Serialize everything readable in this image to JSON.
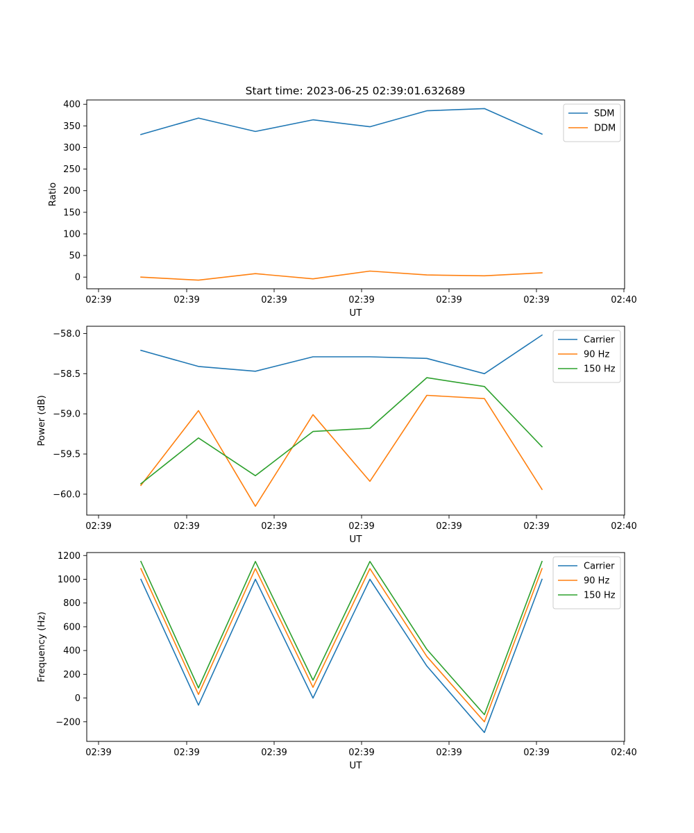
{
  "figure": {
    "title": "Start time: 2023-06-25 02:39:01.632689"
  },
  "colors": {
    "blue": "#1f77b4",
    "orange": "#ff7f0e",
    "green": "#2ca02c"
  },
  "chart_data": [
    {
      "type": "line",
      "title": "Start time: 2023-06-25 02:39:01.632689",
      "xlabel": "UT",
      "ylabel": "Ratio",
      "x_tick_labels": [
        "02:39",
        "02:39",
        "02:39",
        "02:39",
        "02:39",
        "02:39",
        "02:40"
      ],
      "y_ticks": [
        0,
        50,
        100,
        150,
        200,
        250,
        300,
        350,
        400
      ],
      "ylim": [
        -27,
        410
      ],
      "grid": false,
      "legend_position": "upper right",
      "series": [
        {
          "name": "SDM",
          "color": "#1f77b4",
          "values": [
            330,
            368,
            337,
            364,
            348,
            385,
            390,
            331
          ]
        },
        {
          "name": "DDM",
          "color": "#ff7f0e",
          "values": [
            0,
            -7,
            8,
            -4,
            14,
            5,
            3,
            10
          ]
        }
      ]
    },
    {
      "type": "line",
      "title": "",
      "xlabel": "UT",
      "ylabel": "Power (dB)",
      "x_tick_labels": [
        "02:39",
        "02:39",
        "02:39",
        "02:39",
        "02:39",
        "02:39",
        "02:40"
      ],
      "y_ticks": [
        -60.0,
        -59.5,
        -59.0,
        -58.5,
        -58.0
      ],
      "y_tick_labels": [
        "−60.0",
        "−59.5",
        "−59.0",
        "−58.5",
        "−58.0"
      ],
      "ylim": [
        -60.26,
        -57.91
      ],
      "grid": false,
      "legend_position": "upper right",
      "series": [
        {
          "name": "Carrier",
          "color": "#1f77b4",
          "values": [
            -58.21,
            -58.41,
            -58.47,
            -58.29,
            -58.29,
            -58.31,
            -58.5,
            -58.02
          ]
        },
        {
          "name": "90 Hz",
          "color": "#ff7f0e",
          "values": [
            -59.89,
            -58.96,
            -60.15,
            -59.01,
            -59.84,
            -58.77,
            -58.81,
            -59.94
          ]
        },
        {
          "name": "150 Hz",
          "color": "#2ca02c",
          "values": [
            -59.87,
            -59.3,
            -59.77,
            -59.22,
            -59.18,
            -58.55,
            -58.66,
            -59.41
          ]
        }
      ]
    },
    {
      "type": "line",
      "title": "",
      "xlabel": "UT",
      "ylabel": "Frequency (Hz)",
      "x_tick_labels": [
        "02:39",
        "02:39",
        "02:39",
        "02:39",
        "02:39",
        "02:39",
        "02:40"
      ],
      "y_ticks": [
        -200,
        0,
        200,
        400,
        600,
        800,
        1000,
        1200
      ],
      "y_tick_labels": [
        "−200",
        "0",
        "200",
        "400",
        "600",
        "800",
        "1000",
        "1200"
      ],
      "ylim": [
        -365,
        1225
      ],
      "grid": false,
      "legend_position": "upper right",
      "series": [
        {
          "name": "Carrier",
          "color": "#1f77b4",
          "values": [
            1000,
            -60,
            1000,
            0,
            1000,
            270,
            -290,
            1000
          ]
        },
        {
          "name": "90 Hz",
          "color": "#ff7f0e",
          "values": [
            1090,
            30,
            1090,
            90,
            1090,
            350,
            -200,
            1090
          ]
        },
        {
          "name": "150 Hz",
          "color": "#2ca02c",
          "values": [
            1150,
            85,
            1150,
            150,
            1150,
            410,
            -140,
            1150
          ]
        }
      ]
    }
  ]
}
